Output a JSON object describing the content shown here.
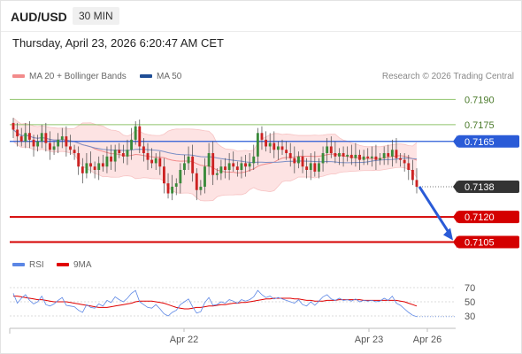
{
  "header": {
    "symbol": "AUD/USD",
    "timeframe": "30 MIN"
  },
  "datetime": "Thursday, April 23, 2026 6:20:47 AM CET",
  "legend": {
    "ma20": {
      "label": "MA 20 + Bollinger Bands",
      "color": "#f28b8b"
    },
    "ma50": {
      "label": "MA 50",
      "color": "#1f4e96"
    },
    "credit": "Research © 2026 Trading Central"
  },
  "rsi_legend": {
    "rsi": {
      "label": "RSI",
      "color": "#5b86e5"
    },
    "ma9": {
      "label": "9MA",
      "color": "#e00000"
    }
  },
  "chart_data": [
    {
      "type": "candlestick",
      "title": "AUD/USD 30 MIN",
      "xlabels": [
        "Apr 22",
        "Apr 23",
        "Apr 26"
      ],
      "ylim": [
        0.71,
        0.7196
      ],
      "levels": [
        {
          "value": 0.719,
          "label": "0.7190",
          "kind": "resistance",
          "color": "#8fc46b"
        },
        {
          "value": 0.7175,
          "label": "0.7175",
          "kind": "resistance",
          "color": "#8fc46b"
        },
        {
          "value": 0.7165,
          "label": "0.7165",
          "kind": "pivot",
          "color": "#2a5bd7"
        },
        {
          "value": 0.7138,
          "label": "0.7138",
          "kind": "last-price",
          "color": "#333333"
        },
        {
          "value": 0.712,
          "label": "0.7120",
          "kind": "support",
          "color": "#d40000"
        },
        {
          "value": 0.7105,
          "label": "0.7105",
          "kind": "support",
          "color": "#d40000"
        }
      ],
      "forecast": {
        "from": 0.7138,
        "to": 0.7105,
        "color": "#2a5bd7"
      },
      "closes": [
        0.7172,
        0.7168,
        0.7165,
        0.717,
        0.7166,
        0.7162,
        0.7165,
        0.717,
        0.7164,
        0.716,
        0.7162,
        0.7166,
        0.7168,
        0.7162,
        0.716,
        0.7158,
        0.715,
        0.7146,
        0.7152,
        0.715,
        0.7148,
        0.7152,
        0.715,
        0.7156,
        0.7153,
        0.716,
        0.7158,
        0.7156,
        0.716,
        0.7166,
        0.7174,
        0.7162,
        0.7158,
        0.7154,
        0.7152,
        0.7155,
        0.715,
        0.714,
        0.7134,
        0.7138,
        0.714,
        0.7148,
        0.7152,
        0.7156,
        0.7146,
        0.7136,
        0.7138,
        0.715,
        0.7158,
        0.7145,
        0.7146,
        0.715,
        0.7148,
        0.7152,
        0.715,
        0.7148,
        0.7152,
        0.715,
        0.7152,
        0.7156,
        0.717,
        0.7166,
        0.7162,
        0.7164,
        0.716,
        0.7162,
        0.716,
        0.7158,
        0.7155,
        0.7152,
        0.7156,
        0.715,
        0.7148,
        0.7152,
        0.7147,
        0.7152,
        0.7158,
        0.7162,
        0.7158,
        0.7156,
        0.7158,
        0.7156,
        0.7157,
        0.7155,
        0.7157,
        0.7154,
        0.7156,
        0.7155,
        0.7156,
        0.7154,
        0.7155,
        0.7158,
        0.7156,
        0.716,
        0.7155,
        0.7154,
        0.7152,
        0.7148,
        0.7142,
        0.7138
      ]
    },
    {
      "type": "line",
      "title": "RSI",
      "ylim": [
        25,
        75
      ],
      "yticks": [
        "70",
        "50",
        "30"
      ],
      "series": [
        {
          "name": "RSI",
          "values": [
            62,
            48,
            55,
            60,
            52,
            47,
            50,
            58,
            46,
            44,
            47,
            52,
            56,
            45,
            44,
            43,
            38,
            35,
            46,
            42,
            41,
            47,
            44,
            52,
            49,
            57,
            53,
            50,
            55,
            62,
            66,
            50,
            46,
            42,
            41,
            46,
            40,
            33,
            30,
            35,
            38,
            46,
            50,
            54,
            43,
            34,
            36,
            49,
            56,
            45,
            46,
            50,
            48,
            53,
            51,
            48,
            53,
            51,
            53,
            57,
            66,
            60,
            56,
            58,
            54,
            56,
            54,
            52,
            50,
            48,
            53,
            46,
            44,
            50,
            45,
            51,
            57,
            60,
            54,
            52,
            55,
            52,
            53,
            51,
            54,
            50,
            52,
            51,
            52,
            50,
            51,
            55,
            52,
            58,
            48,
            45,
            40,
            35,
            31,
            29
          ]
        },
        {
          "name": "9MA",
          "values": [
            58,
            58,
            57,
            56,
            55,
            54,
            53,
            53,
            52,
            51,
            50,
            50,
            50,
            50,
            49,
            48,
            47,
            46,
            45,
            44,
            43,
            42,
            42,
            42,
            43,
            44,
            45,
            46,
            47,
            48,
            50,
            51,
            51,
            51,
            51,
            50,
            49,
            48,
            46,
            44,
            42,
            41,
            40,
            40,
            41,
            42,
            42,
            43,
            44,
            44,
            45,
            46,
            46,
            47,
            48,
            48,
            49,
            49,
            50,
            51,
            52,
            53,
            54,
            54,
            55,
            55,
            55,
            55,
            55,
            54,
            54,
            53,
            52,
            52,
            51,
            51,
            51,
            52,
            52,
            52,
            53,
            53,
            53,
            53,
            53,
            53,
            52,
            52,
            52,
            52,
            52,
            52,
            52,
            52,
            52,
            51,
            50,
            48,
            46,
            44
          ]
        }
      ]
    }
  ]
}
